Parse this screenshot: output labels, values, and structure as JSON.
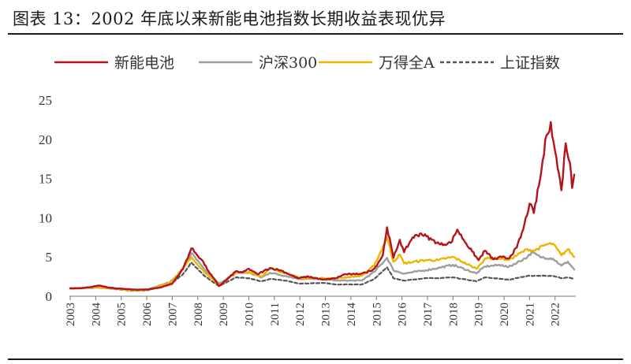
{
  "figure": {
    "title": "图表 13：2002 年底以来新能电池指数长期收益表现优异"
  },
  "chart_data": {
    "type": "line",
    "xlim": [
      "2003-01",
      "2022-10"
    ],
    "x_ticks": [
      "2003",
      "2004",
      "2005",
      "2006",
      "2007",
      "2008",
      "2009",
      "2010",
      "2011",
      "2012",
      "2013",
      "2014",
      "2015",
      "2016",
      "2017",
      "2018",
      "2019",
      "2020",
      "2021",
      "2022"
    ],
    "ylim": [
      0,
      25
    ],
    "y_ticks": [
      0,
      5,
      10,
      15,
      20,
      25
    ],
    "grid": false,
    "legend_position": "top",
    "series": [
      {
        "name": "新能电池",
        "color": "#b5121b",
        "dash": "solid",
        "points": [
          [
            "2003-01",
            1.0
          ],
          [
            "2003-07",
            1.05
          ],
          [
            "2004-03",
            1.35
          ],
          [
            "2004-07",
            1.1
          ],
          [
            "2005-01",
            0.95
          ],
          [
            "2005-07",
            0.85
          ],
          [
            "2006-01",
            0.85
          ],
          [
            "2006-07",
            1.1
          ],
          [
            "2007-01",
            1.6
          ],
          [
            "2007-06",
            3.5
          ],
          [
            "2007-10",
            6.1
          ],
          [
            "2007-12",
            5.5
          ],
          [
            "2008-03",
            4.6
          ],
          [
            "2008-06",
            3.2
          ],
          [
            "2008-11",
            1.3
          ],
          [
            "2009-03",
            2.2
          ],
          [
            "2009-07",
            3.2
          ],
          [
            "2009-10",
            3.0
          ],
          [
            "2010-01",
            3.5
          ],
          [
            "2010-05",
            2.8
          ],
          [
            "2010-11",
            3.6
          ],
          [
            "2011-04",
            3.3
          ],
          [
            "2011-12",
            2.3
          ],
          [
            "2012-05",
            2.5
          ],
          [
            "2012-12",
            2.1
          ],
          [
            "2013-06",
            2.3
          ],
          [
            "2013-10",
            2.8
          ],
          [
            "2014-03",
            2.8
          ],
          [
            "2014-08",
            3.0
          ],
          [
            "2014-12",
            3.5
          ],
          [
            "2015-04",
            5.2
          ],
          [
            "2015-06",
            8.8
          ],
          [
            "2015-09",
            4.9
          ],
          [
            "2015-12",
            7.2
          ],
          [
            "2016-02",
            5.6
          ],
          [
            "2016-06",
            7.5
          ],
          [
            "2016-10",
            8.0
          ],
          [
            "2017-03",
            7.2
          ],
          [
            "2017-07",
            6.6
          ],
          [
            "2017-12",
            6.8
          ],
          [
            "2018-03",
            8.5
          ],
          [
            "2018-06",
            7.2
          ],
          [
            "2018-10",
            5.7
          ],
          [
            "2019-01",
            4.6
          ],
          [
            "2019-04",
            5.8
          ],
          [
            "2019-08",
            4.7
          ],
          [
            "2019-12",
            5.0
          ],
          [
            "2020-03",
            4.8
          ],
          [
            "2020-07",
            6.2
          ],
          [
            "2020-10",
            8.5
          ],
          [
            "2021-01",
            11.8
          ],
          [
            "2021-03",
            10.6
          ],
          [
            "2021-06",
            15.0
          ],
          [
            "2021-09",
            20.5
          ],
          [
            "2021-11",
            22.2
          ],
          [
            "2022-01",
            18.5
          ],
          [
            "2022-04",
            13.5
          ],
          [
            "2022-06",
            19.5
          ],
          [
            "2022-08",
            17.0
          ],
          [
            "2022-09",
            13.8
          ],
          [
            "2022-10",
            15.5
          ]
        ]
      },
      {
        "name": "沪深300",
        "color": "#9e9e9e",
        "dash": "solid",
        "points": [
          [
            "2003-01",
            1.0
          ],
          [
            "2004-03",
            1.1
          ],
          [
            "2005-06",
            0.8
          ],
          [
            "2006-01",
            0.85
          ],
          [
            "2006-12",
            1.8
          ],
          [
            "2007-06",
            3.4
          ],
          [
            "2007-10",
            5.5
          ],
          [
            "2008-04",
            3.4
          ],
          [
            "2008-11",
            1.6
          ],
          [
            "2009-07",
            3.0
          ],
          [
            "2010-01",
            3.0
          ],
          [
            "2010-07",
            2.4
          ],
          [
            "2010-11",
            3.0
          ],
          [
            "2011-06",
            2.6
          ],
          [
            "2012-01",
            2.2
          ],
          [
            "2012-12",
            2.2
          ],
          [
            "2013-06",
            2.0
          ],
          [
            "2014-06",
            2.0
          ],
          [
            "2014-12",
            3.1
          ],
          [
            "2015-06",
            4.9
          ],
          [
            "2015-09",
            3.3
          ],
          [
            "2016-02",
            2.9
          ],
          [
            "2016-12",
            3.3
          ],
          [
            "2017-06",
            3.6
          ],
          [
            "2018-01",
            4.0
          ],
          [
            "2018-12",
            2.9
          ],
          [
            "2019-04",
            3.8
          ],
          [
            "2019-12",
            4.0
          ],
          [
            "2020-03",
            3.7
          ],
          [
            "2020-12",
            5.0
          ],
          [
            "2021-02",
            5.6
          ],
          [
            "2021-06",
            5.0
          ],
          [
            "2021-12",
            4.8
          ],
          [
            "2022-04",
            3.9
          ],
          [
            "2022-07",
            4.4
          ],
          [
            "2022-10",
            3.4
          ]
        ]
      },
      {
        "name": "万得全A",
        "color": "#f0b400",
        "dash": "solid",
        "points": [
          [
            "2003-01",
            1.0
          ],
          [
            "2004-03",
            1.15
          ],
          [
            "2005-06",
            0.75
          ],
          [
            "2006-01",
            0.8
          ],
          [
            "2006-12",
            1.7
          ],
          [
            "2007-06",
            3.5
          ],
          [
            "2007-10",
            5.0
          ],
          [
            "2008-04",
            3.1
          ],
          [
            "2008-11",
            1.4
          ],
          [
            "2009-07",
            3.0
          ],
          [
            "2010-01",
            3.1
          ],
          [
            "2010-07",
            2.5
          ],
          [
            "2010-11",
            3.5
          ],
          [
            "2011-06",
            3.0
          ],
          [
            "2012-01",
            2.3
          ],
          [
            "2012-12",
            2.3
          ],
          [
            "2013-06",
            2.3
          ],
          [
            "2014-06",
            2.6
          ],
          [
            "2014-12",
            3.9
          ],
          [
            "2015-06",
            7.5
          ],
          [
            "2015-09",
            4.4
          ],
          [
            "2015-12",
            5.3
          ],
          [
            "2016-02",
            4.2
          ],
          [
            "2016-12",
            4.6
          ],
          [
            "2017-06",
            4.6
          ],
          [
            "2018-01",
            5.0
          ],
          [
            "2018-12",
            3.5
          ],
          [
            "2019-04",
            4.8
          ],
          [
            "2019-12",
            4.8
          ],
          [
            "2020-03",
            4.6
          ],
          [
            "2020-12",
            6.0
          ],
          [
            "2021-03",
            5.8
          ],
          [
            "2021-09",
            6.6
          ],
          [
            "2021-12",
            6.7
          ],
          [
            "2022-04",
            5.2
          ],
          [
            "2022-07",
            6.0
          ],
          [
            "2022-10",
            5.0
          ]
        ]
      },
      {
        "name": "上证指数",
        "color": "#555555",
        "dash": "dashed",
        "points": [
          [
            "2003-01",
            1.0
          ],
          [
            "2004-03",
            1.1
          ],
          [
            "2005-06",
            0.7
          ],
          [
            "2006-01",
            0.75
          ],
          [
            "2006-12",
            1.5
          ],
          [
            "2007-06",
            2.8
          ],
          [
            "2007-10",
            4.3
          ],
          [
            "2008-04",
            2.6
          ],
          [
            "2008-11",
            1.3
          ],
          [
            "2009-07",
            2.4
          ],
          [
            "2010-01",
            2.3
          ],
          [
            "2010-07",
            1.9
          ],
          [
            "2010-11",
            2.2
          ],
          [
            "2011-06",
            2.0
          ],
          [
            "2012-01",
            1.6
          ],
          [
            "2012-12",
            1.7
          ],
          [
            "2013-06",
            1.5
          ],
          [
            "2014-06",
            1.5
          ],
          [
            "2014-12",
            2.2
          ],
          [
            "2015-06",
            3.7
          ],
          [
            "2015-09",
            2.3
          ],
          [
            "2016-02",
            2.0
          ],
          [
            "2016-12",
            2.3
          ],
          [
            "2017-06",
            2.3
          ],
          [
            "2018-01",
            2.4
          ],
          [
            "2018-12",
            1.9
          ],
          [
            "2019-04",
            2.4
          ],
          [
            "2019-12",
            2.2
          ],
          [
            "2020-03",
            2.1
          ],
          [
            "2020-12",
            2.6
          ],
          [
            "2021-06",
            2.6
          ],
          [
            "2021-12",
            2.6
          ],
          [
            "2022-04",
            2.3
          ],
          [
            "2022-07",
            2.4
          ],
          [
            "2022-10",
            2.2
          ]
        ]
      }
    ]
  }
}
